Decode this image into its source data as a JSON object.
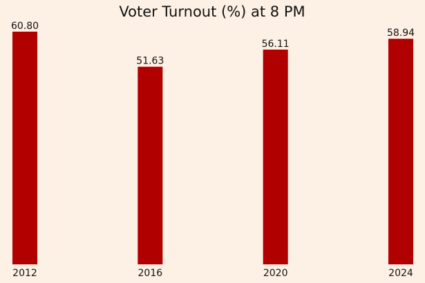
{
  "chart_data": {
    "type": "bar",
    "title": "Voter Turnout (%) at 8 PM",
    "categories": [
      "2012",
      "2016",
      "2020",
      "2024"
    ],
    "values": [
      60.8,
      51.63,
      56.11,
      58.94
    ],
    "value_labels": [
      "60.80",
      "51.63",
      "56.11",
      "58.94"
    ],
    "color": "#b00000",
    "ylim": [
      0,
      63.84
    ]
  }
}
